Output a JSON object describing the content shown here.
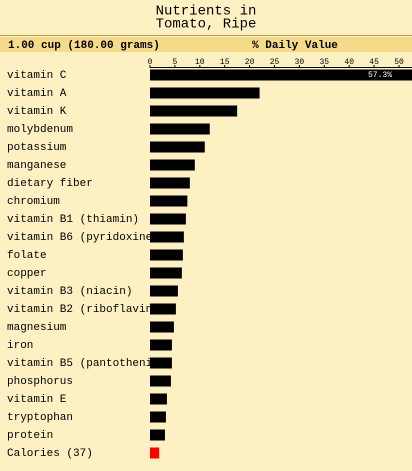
{
  "chart_data": {
    "type": "bar",
    "orientation": "horizontal",
    "title": [
      "Nutrients in",
      "Tomato, Ripe"
    ],
    "serving": "1.00 cup (180.00 grams)",
    "axis_label": "% Daily Value",
    "categories": [
      "vitamin C",
      "vitamin A",
      "vitamin K",
      "molybdenum",
      "potassium",
      "manganese",
      "dietary fiber",
      "chromium",
      "vitamin B1 (thiamin)",
      "vitamin B6 (pyridoxine)",
      "folate",
      "copper",
      "vitamin B3 (niacin)",
      "vitamin B2 (riboflavin)",
      "magnesium",
      "iron",
      "vitamin B5 (pantothenic",
      "phosphorus",
      "vitamin E",
      "tryptophan",
      "protein",
      "Calories (37)"
    ],
    "values": [
      57.3,
      22,
      17.5,
      12,
      11,
      9,
      8,
      7.5,
      7.2,
      6.8,
      6.6,
      6.4,
      5.6,
      5.2,
      4.8,
      4.4,
      4.4,
      4.2,
      3.4,
      3.2,
      3,
      1.85
    ],
    "value_labels": [
      "57.3%",
      null,
      null,
      null,
      null,
      null,
      null,
      null,
      null,
      null,
      null,
      null,
      null,
      null,
      null,
      null,
      null,
      null,
      null,
      null,
      null,
      null
    ],
    "colors": [
      "#000000",
      "#000000",
      "#000000",
      "#000000",
      "#000000",
      "#000000",
      "#000000",
      "#000000",
      "#000000",
      "#000000",
      "#000000",
      "#000000",
      "#000000",
      "#000000",
      "#000000",
      "#000000",
      "#000000",
      "#000000",
      "#000000",
      "#000000",
      "#000000",
      "#ff0000"
    ],
    "xlim": [
      0,
      50
    ],
    "xticks": [
      0,
      5,
      10,
      15,
      20,
      25,
      30,
      35,
      40,
      45,
      50
    ]
  }
}
